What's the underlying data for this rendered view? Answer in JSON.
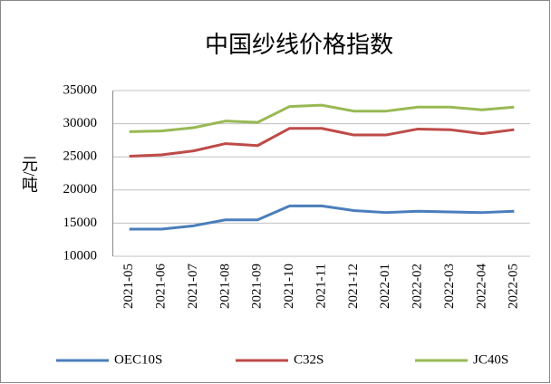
{
  "chart_data": {
    "type": "line",
    "title": "中国纱线价格指数",
    "y_label": "元/吨",
    "categories": [
      "2021-05",
      "2021-06",
      "2021-07",
      "2021-08",
      "2021-09",
      "2021-10",
      "2021-11",
      "2021-12",
      "2022-01",
      "2022-02",
      "2022-03",
      "2022-04",
      "2022-05"
    ],
    "series": [
      {
        "name": "OEC10S",
        "color": "#4a7ebb",
        "values": [
          14100,
          14100,
          14600,
          15500,
          15500,
          17600,
          17600,
          16900,
          16600,
          16800,
          16700,
          16600,
          16800
        ]
      },
      {
        "name": "C32S",
        "color": "#be4b48",
        "values": [
          25100,
          25300,
          25900,
          27000,
          26700,
          29300,
          29300,
          28300,
          28300,
          29200,
          29100,
          28500,
          29100
        ]
      },
      {
        "name": "JC40S",
        "color": "#98b954",
        "values": [
          28800,
          28900,
          29400,
          30400,
          30200,
          32600,
          32800,
          31900,
          31900,
          32500,
          32500,
          32100,
          32500
        ]
      }
    ],
    "ylim": [
      10000,
      35000
    ],
    "yticks": [
      10000,
      15000,
      20000,
      25000,
      30000,
      35000
    ],
    "grid": true,
    "legend": "bottom"
  }
}
